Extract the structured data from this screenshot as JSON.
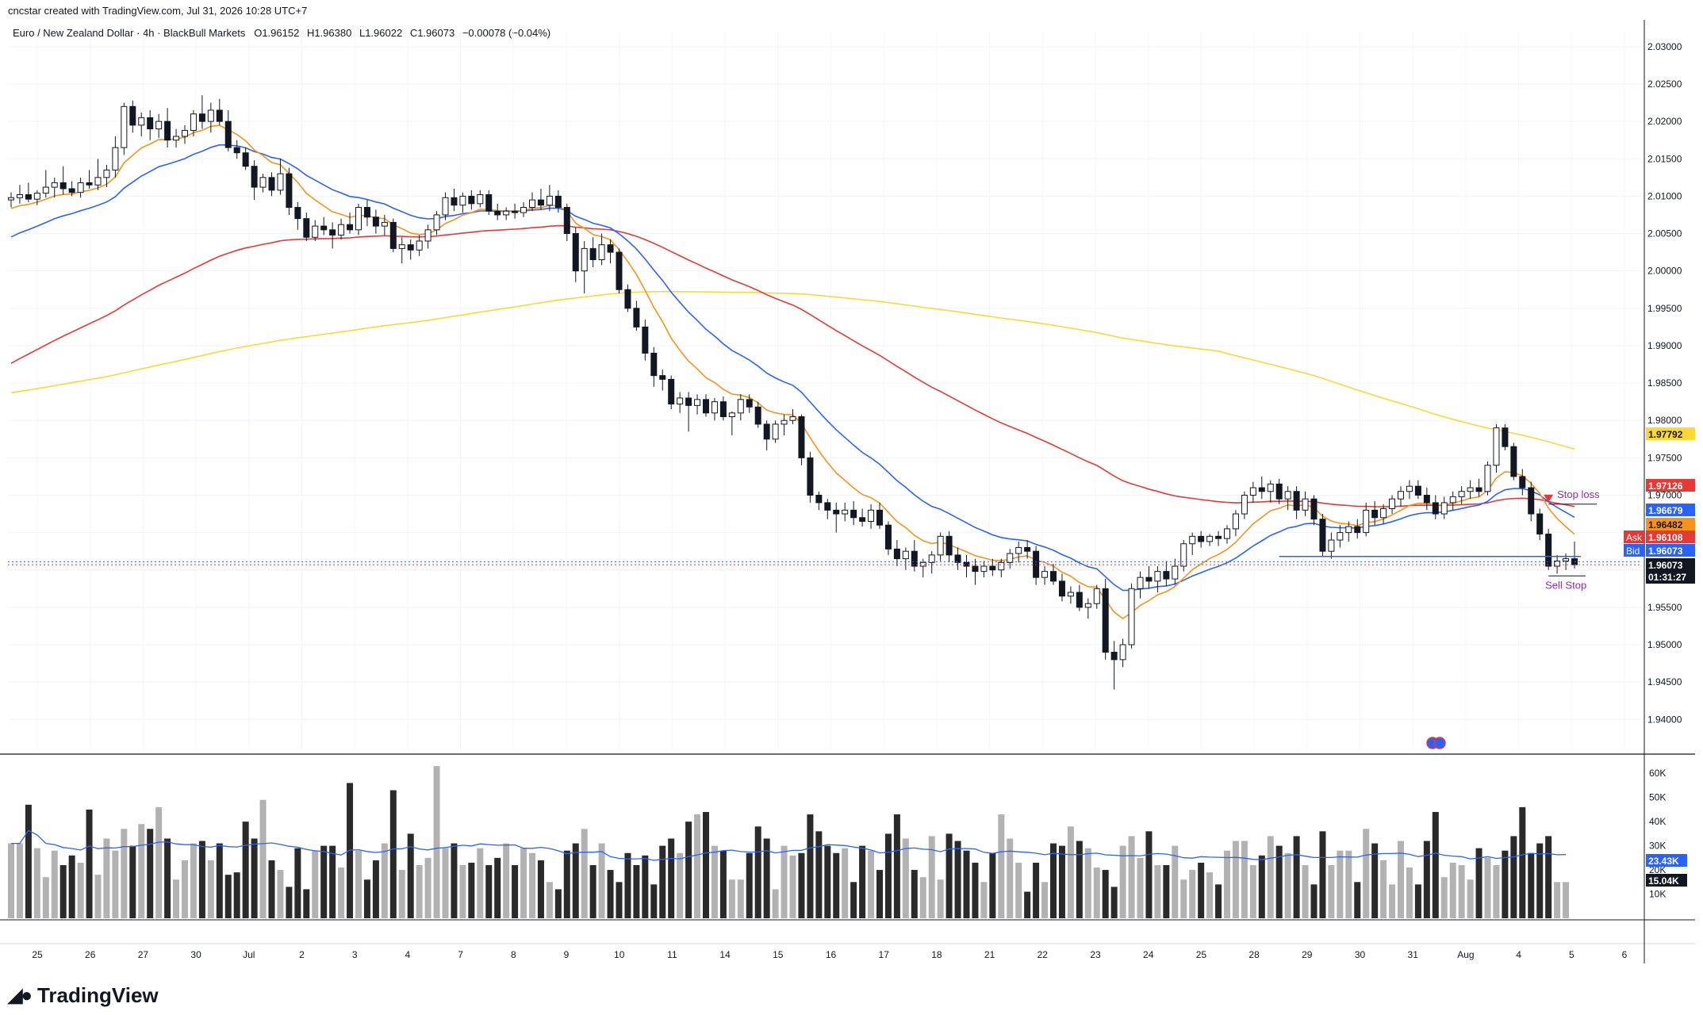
{
  "header": {
    "created_by": "cncstar created with TradingView.com, Jul 31, 2026 10:28 UTC+7"
  },
  "legend": {
    "symbol": "Euro / New Zealand Dollar · 4h · BlackBull Markets",
    "open_label": "O",
    "open": "1.96152",
    "high_label": "H",
    "high": "1.96380",
    "low_label": "L",
    "low": "1.96022",
    "close_label": "C",
    "close": "1.96073",
    "change": "−0.00078 (−0.04%)"
  },
  "brand": {
    "name": "TradingView",
    "logo_icon": "tradingview-logo-icon"
  },
  "colors": {
    "ema_fast": "#f7931a",
    "ema_mid": "#2962ff",
    "ema_slow": "#e53935",
    "sma_long": "#fdd835",
    "candle_up": "#ffffff",
    "candle_down": "#131722",
    "volume_up": "#b2b2b2",
    "volume_down": "#2a2a2a",
    "volume_ma": "#2962ff",
    "annotation": "#9c27b0",
    "stop_arrow": "#e53935"
  },
  "chart_data": {
    "type": "candlestick",
    "interval": "4h",
    "yaxis": {
      "ticks": [
        "2.03000",
        "2.02500",
        "2.02000",
        "2.01500",
        "2.01000",
        "2.00500",
        "2.00000",
        "1.99500",
        "1.99000",
        "1.98500",
        "1.98000",
        "1.97500",
        "1.97000",
        "1.96500",
        "1.96000",
        "1.95500",
        "1.95000",
        "1.94500",
        "1.94000"
      ],
      "ylim": [
        1.936,
        2.032
      ]
    },
    "xaxis": {
      "ticks": [
        "25",
        "26",
        "27",
        "30",
        "Jul",
        "2",
        "3",
        "4",
        "7",
        "8",
        "9",
        "10",
        "11",
        "14",
        "15",
        "16",
        "17",
        "18",
        "21",
        "22",
        "23",
        "24",
        "25",
        "28",
        "29",
        "30",
        "31",
        "Aug",
        "4",
        "5",
        "6"
      ]
    },
    "price_tags": [
      {
        "label": "",
        "value": "1.97792",
        "role": "sma_long"
      },
      {
        "label": "",
        "value": "1.97126",
        "role": "ema_slow"
      },
      {
        "label": "",
        "value": "1.96679",
        "role": "ema_mid"
      },
      {
        "label": "",
        "value": "1.96482",
        "role": "ema_fast"
      },
      {
        "label": "Ask",
        "value": "1.96108",
        "role": "ask"
      },
      {
        "label": "Bid",
        "value": "1.96073",
        "role": "bid"
      },
      {
        "label": "",
        "value": "1.96073",
        "role": "last",
        "countdown": "01:31:27"
      }
    ],
    "annotations": {
      "stop_loss": {
        "text": "Stop loss",
        "price": 1.9688
      },
      "sell_stop": {
        "text": "Sell Stop",
        "price": 1.9592
      },
      "support_line": 1.9618
    },
    "candles": [
      [
        2.0095,
        2.0105,
        2.0085,
        2.0098
      ],
      [
        2.0098,
        2.0115,
        2.009,
        2.0102
      ],
      [
        2.0102,
        2.0118,
        2.0092,
        2.0096
      ],
      [
        2.0096,
        2.0108,
        2.0088,
        2.0104
      ],
      [
        2.0104,
        2.0135,
        2.0098,
        2.0112
      ],
      [
        2.0112,
        2.0125,
        2.0098,
        2.0118
      ],
      [
        2.0118,
        2.014,
        2.0102,
        2.011
      ],
      [
        2.011,
        2.012,
        2.01,
        2.0105
      ],
      [
        2.0105,
        2.0125,
        2.0098,
        2.0118
      ],
      [
        2.0118,
        2.0135,
        2.011,
        2.0115
      ],
      [
        2.0115,
        2.015,
        2.0108,
        2.0125
      ],
      [
        2.0125,
        2.0142,
        2.0112,
        2.0135
      ],
      [
        2.0135,
        2.018,
        2.0125,
        2.0165
      ],
      [
        2.0165,
        2.0225,
        2.0155,
        2.022
      ],
      [
        2.022,
        2.0228,
        2.0185,
        2.0195
      ],
      [
        2.0195,
        2.0212,
        2.018,
        2.0205
      ],
      [
        2.0205,
        2.0215,
        2.0175,
        2.019
      ],
      [
        2.019,
        2.021,
        2.0178,
        2.02
      ],
      [
        2.02,
        2.0218,
        2.0165,
        2.0175
      ],
      [
        2.0175,
        2.019,
        2.0165,
        2.018
      ],
      [
        2.018,
        2.0195,
        2.017,
        2.0188
      ],
      [
        2.0188,
        2.0215,
        2.018,
        2.021
      ],
      [
        2.021,
        2.0235,
        2.019,
        2.02
      ],
      [
        2.02,
        2.0225,
        2.0185,
        2.0215
      ],
      [
        2.0215,
        2.023,
        2.0195,
        2.02
      ],
      [
        2.02,
        2.0215,
        2.016,
        2.0165
      ],
      [
        2.0165,
        2.0175,
        2.015,
        2.0158
      ],
      [
        2.0158,
        2.0165,
        2.0135,
        2.014
      ],
      [
        2.014,
        2.0148,
        2.0095,
        2.0112
      ],
      [
        2.0112,
        2.013,
        2.0105,
        2.0125
      ],
      [
        2.0125,
        2.0132,
        2.01,
        2.0108
      ],
      [
        2.0108,
        2.015,
        2.0102,
        2.013
      ],
      [
        2.013,
        2.0138,
        2.0075,
        2.0085
      ],
      [
        2.0085,
        2.0092,
        2.0055,
        2.007
      ],
      [
        2.007,
        2.0078,
        2.004,
        2.0045
      ],
      [
        2.0045,
        2.0068,
        2.004,
        2.006
      ],
      [
        2.006,
        2.0072,
        2.0048,
        2.0055
      ],
      [
        2.0055,
        2.0065,
        2.003,
        2.0048
      ],
      [
        2.0048,
        2.007,
        2.0042,
        2.0062
      ],
      [
        2.0062,
        2.0078,
        2.005,
        2.0055
      ],
      [
        2.0055,
        2.009,
        2.0048,
        2.0085
      ],
      [
        2.0085,
        2.0095,
        2.006,
        2.0072
      ],
      [
        2.0072,
        2.0082,
        2.005,
        2.006
      ],
      [
        2.006,
        2.0075,
        2.0048,
        2.0065
      ],
      [
        2.0065,
        2.007,
        2.0025,
        2.003
      ],
      [
        2.003,
        2.0045,
        2.001,
        2.0035
      ],
      [
        2.0035,
        2.0042,
        2.0015,
        2.0028
      ],
      [
        2.0028,
        2.0048,
        2.002,
        2.004
      ],
      [
        2.004,
        2.0062,
        2.003,
        2.0055
      ],
      [
        2.0055,
        2.008,
        2.0048,
        2.0075
      ],
      [
        2.0075,
        2.0105,
        2.0068,
        2.0098
      ],
      [
        2.0098,
        2.011,
        2.008,
        2.0088
      ],
      [
        2.0088,
        2.0105,
        2.0078,
        2.01
      ],
      [
        2.01,
        2.0108,
        2.0082,
        2.009
      ],
      [
        2.009,
        2.0108,
        2.0085,
        2.0102
      ],
      [
        2.0102,
        2.0108,
        2.0075,
        2.008
      ],
      [
        2.008,
        2.009,
        2.0068,
        2.0075
      ],
      [
        2.0075,
        2.0085,
        2.0068,
        2.008
      ],
      [
        2.008,
        2.009,
        2.007,
        2.0078
      ],
      [
        2.0078,
        2.0092,
        2.0072,
        2.0085
      ],
      [
        2.0085,
        2.0105,
        2.008,
        2.0095
      ],
      [
        2.0095,
        2.011,
        2.0082,
        2.0088
      ],
      [
        2.0088,
        2.0115,
        2.008,
        2.01
      ],
      [
        2.01,
        2.0108,
        2.0078,
        2.0085
      ],
      [
        2.0085,
        2.009,
        2.004,
        2.005
      ],
      [
        2.005,
        2.0058,
        1.9985,
        2.0
      ],
      [
        2.0,
        2.004,
        1.997,
        2.003
      ],
      [
        2.003,
        2.0045,
        2.0005,
        2.0015
      ],
      [
        2.0015,
        2.005,
        2.0008,
        2.0035
      ],
      [
        2.0035,
        2.0042,
        2.001,
        2.0025
      ],
      [
        2.0025,
        2.003,
        1.997,
        1.9975
      ],
      [
        1.9975,
        1.9982,
        1.9945,
        1.995
      ],
      [
        1.995,
        1.996,
        1.992,
        1.9925
      ],
      [
        1.9925,
        1.9935,
        1.988,
        1.989
      ],
      [
        1.989,
        1.9898,
        1.9845,
        1.986
      ],
      [
        1.986,
        1.9868,
        1.984,
        1.9855
      ],
      [
        1.9855,
        1.986,
        1.9815,
        1.9822
      ],
      [
        1.9822,
        1.9838,
        1.981,
        1.983
      ],
      [
        1.983,
        1.9838,
        1.9785,
        1.982
      ],
      [
        1.982,
        1.9835,
        1.9808,
        1.9828
      ],
      [
        1.9828,
        1.9835,
        1.9805,
        1.981
      ],
      [
        1.981,
        1.983,
        1.98,
        1.9825
      ],
      [
        1.9825,
        1.9832,
        1.98,
        1.9805
      ],
      [
        1.9805,
        1.9812,
        1.978,
        1.981
      ],
      [
        1.981,
        1.9835,
        1.98,
        1.9828
      ],
      [
        1.9828,
        1.9835,
        1.981,
        1.9818
      ],
      [
        1.9818,
        1.9825,
        1.979,
        1.9795
      ],
      [
        1.9795,
        1.98,
        1.976,
        1.9775
      ],
      [
        1.9775,
        1.98,
        1.977,
        1.9795
      ],
      [
        1.9795,
        1.9808,
        1.978,
        1.98
      ],
      [
        1.98,
        1.9815,
        1.9795,
        1.9805
      ],
      [
        1.9805,
        1.9808,
        1.974,
        1.975
      ],
      [
        1.975,
        1.9758,
        1.969,
        1.97
      ],
      [
        1.97,
        1.9705,
        1.968,
        1.969
      ],
      [
        1.969,
        1.9695,
        1.9668,
        1.968
      ],
      [
        1.968,
        1.969,
        1.965,
        1.9675
      ],
      [
        1.9675,
        1.969,
        1.9665,
        1.968
      ],
      [
        1.968,
        1.9692,
        1.966,
        1.967
      ],
      [
        1.967,
        1.9682,
        1.9658,
        1.9665
      ],
      [
        1.9665,
        1.9688,
        1.9655,
        1.968
      ],
      [
        1.968,
        1.969,
        1.9655,
        1.966
      ],
      [
        1.966,
        1.9665,
        1.962,
        1.9628
      ],
      [
        1.9628,
        1.964,
        1.9605,
        1.9615
      ],
      [
        1.9615,
        1.963,
        1.96,
        1.9625
      ],
      [
        1.9625,
        1.964,
        1.9598,
        1.9605
      ],
      [
        1.9605,
        1.9615,
        1.959,
        1.961
      ],
      [
        1.961,
        1.9625,
        1.9595,
        1.962
      ],
      [
        1.962,
        1.965,
        1.9612,
        1.9645
      ],
      [
        1.9645,
        1.9652,
        1.961,
        1.962
      ],
      [
        1.962,
        1.963,
        1.96,
        1.961
      ],
      [
        1.961,
        1.962,
        1.959,
        1.9605
      ],
      [
        1.9605,
        1.9615,
        1.958,
        1.9598
      ],
      [
        1.9598,
        1.9612,
        1.959,
        1.9605
      ],
      [
        1.9605,
        1.9615,
        1.9592,
        1.96
      ],
      [
        1.96,
        1.9615,
        1.959,
        1.961
      ],
      [
        1.961,
        1.9628,
        1.9602,
        1.9622
      ],
      [
        1.9622,
        1.9638,
        1.961,
        1.963
      ],
      [
        1.963,
        1.964,
        1.9615,
        1.9625
      ],
      [
        1.9625,
        1.9632,
        1.958,
        1.959
      ],
      [
        1.959,
        1.9605,
        1.958,
        1.9598
      ],
      [
        1.9598,
        1.9608,
        1.958,
        1.9585
      ],
      [
        1.9585,
        1.9595,
        1.9558,
        1.9565
      ],
      [
        1.9565,
        1.9578,
        1.9555,
        1.957
      ],
      [
        1.957,
        1.958,
        1.9545,
        1.955
      ],
      [
        1.955,
        1.9562,
        1.9535,
        1.9555
      ],
      [
        1.9555,
        1.958,
        1.9548,
        1.9575
      ],
      [
        1.9575,
        1.9588,
        1.948,
        1.949
      ],
      [
        1.949,
        1.9505,
        1.944,
        1.948
      ],
      [
        1.948,
        1.9508,
        1.947,
        1.95
      ],
      [
        1.95,
        1.9582,
        1.9495,
        1.9575
      ],
      [
        1.9575,
        1.9598,
        1.9562,
        1.959
      ],
      [
        1.959,
        1.9605,
        1.9575,
        1.9585
      ],
      [
        1.9585,
        1.9605,
        1.957,
        1.9598
      ],
      [
        1.9598,
        1.9612,
        1.9578,
        1.9588
      ],
      [
        1.9588,
        1.9615,
        1.958,
        1.9605
      ],
      [
        1.9605,
        1.964,
        1.9598,
        1.9635
      ],
      [
        1.9635,
        1.965,
        1.962,
        1.9645
      ],
      [
        1.9645,
        1.9652,
        1.963,
        1.9638
      ],
      [
        1.9638,
        1.9648,
        1.9632,
        1.9645
      ],
      [
        1.9645,
        1.9652,
        1.9632,
        1.9642
      ],
      [
        1.9642,
        1.966,
        1.9635,
        1.9655
      ],
      [
        1.9655,
        1.968,
        1.9645,
        1.9675
      ],
      [
        1.9675,
        1.9705,
        1.9668,
        1.97
      ],
      [
        1.97,
        1.9718,
        1.969,
        1.971
      ],
      [
        1.971,
        1.9725,
        1.9695,
        1.9705
      ],
      [
        1.9705,
        1.972,
        1.969,
        1.9715
      ],
      [
        1.9715,
        1.9722,
        1.9688,
        1.9695
      ],
      [
        1.9695,
        1.9712,
        1.968,
        1.9705
      ],
      [
        1.9705,
        1.9712,
        1.9668,
        1.968
      ],
      [
        1.968,
        1.9705,
        1.9672,
        1.9695
      ],
      [
        1.9695,
        1.97,
        1.966,
        1.9668
      ],
      [
        1.9668,
        1.9675,
        1.9618,
        1.9625
      ],
      [
        1.9625,
        1.965,
        1.9615,
        1.964
      ],
      [
        1.964,
        1.966,
        1.963,
        1.965
      ],
      [
        1.965,
        1.9665,
        1.9638,
        1.9658
      ],
      [
        1.9658,
        1.9668,
        1.9642,
        1.965
      ],
      [
        1.965,
        1.969,
        1.9645,
        1.968
      ],
      [
        1.968,
        1.9692,
        1.966,
        1.967
      ],
      [
        1.967,
        1.9688,
        1.9662,
        1.9682
      ],
      [
        1.9682,
        1.97,
        1.9675,
        1.9695
      ],
      [
        1.9695,
        1.9712,
        1.9685,
        1.9705
      ],
      [
        1.9705,
        1.972,
        1.9695,
        1.9712
      ],
      [
        1.9712,
        1.972,
        1.9695,
        1.97
      ],
      [
        1.97,
        1.971,
        1.968,
        1.969
      ],
      [
        1.969,
        1.97,
        1.9668,
        1.9675
      ],
      [
        1.9675,
        1.9698,
        1.9668,
        1.969
      ],
      [
        1.969,
        1.9705,
        1.968,
        1.9698
      ],
      [
        1.9698,
        1.9712,
        1.9688,
        1.9705
      ],
      [
        1.9705,
        1.972,
        1.9695,
        1.971
      ],
      [
        1.971,
        1.9722,
        1.9698,
        1.9705
      ],
      [
        1.9705,
        1.9745,
        1.97,
        1.974
      ],
      [
        1.974,
        1.9795,
        1.973,
        1.979
      ],
      [
        1.979,
        1.9795,
        1.976,
        1.9765
      ],
      [
        1.9765,
        1.977,
        1.972,
        1.9725
      ],
      [
        1.9725,
        1.9735,
        1.97,
        1.971
      ],
      [
        1.971,
        1.9718,
        1.9665,
        1.9675
      ],
      [
        1.9675,
        1.9682,
        1.964,
        1.9648
      ],
      [
        1.9648,
        1.9655,
        1.96,
        1.9605
      ],
      [
        1.9605,
        1.962,
        1.9595,
        1.9612
      ],
      [
        1.9612,
        1.9622,
        1.96,
        1.9615
      ],
      [
        1.9615,
        1.9638,
        1.9602,
        1.9607
      ]
    ],
    "volumes": [
      31,
      31,
      47,
      29,
      17,
      28,
      22,
      26,
      23,
      45,
      18,
      33,
      28,
      37,
      30,
      39,
      37,
      46,
      33,
      16,
      24,
      31,
      32,
      24,
      31,
      18,
      19,
      40,
      33,
      49,
      24,
      20,
      13,
      29,
      12,
      28,
      30,
      30,
      21,
      56,
      28,
      16,
      24,
      31,
      53,
      20,
      35,
      22,
      25,
      63,
      29,
      31,
      22,
      23,
      29,
      22,
      25,
      31,
      22,
      29,
      27,
      24,
      15,
      12,
      28,
      31,
      37,
      22,
      31,
      20,
      15,
      27,
      22,
      26,
      14,
      30,
      33,
      27,
      40,
      43,
      44,
      30,
      28,
      16,
      16,
      27,
      38,
      33,
      12,
      30,
      26,
      27,
      43,
      36,
      30,
      27,
      29,
      15,
      30,
      28,
      20,
      35,
      43,
      33,
      20,
      17,
      34,
      16,
      35,
      32,
      28,
      23,
      15,
      27,
      43,
      33,
      23,
      11,
      23,
      15,
      31,
      30,
      38,
      32,
      29,
      21,
      20,
      13,
      30,
      34,
      25,
      36,
      22,
      22,
      30,
      16,
      20,
      23,
      19,
      14,
      28,
      32,
      32,
      22,
      26,
      34,
      30,
      27,
      34,
      22,
      14,
      36,
      22,
      28,
      28,
      15,
      37,
      31,
      24,
      14,
      32,
      21,
      14,
      32,
      44,
      17,
      23,
      22,
      16,
      29,
      25,
      22,
      28,
      34,
      46,
      27,
      31,
      34,
      15,
      15
    ],
    "volume_axis": {
      "ticks": [
        "60K",
        "50K",
        "40K",
        "30K",
        "20K",
        "10K"
      ],
      "ylim": [
        0,
        65
      ]
    },
    "volume_tags": [
      {
        "value": "23.43K",
        "role": "volume_ma"
      },
      {
        "value": "15.04K",
        "role": "volume"
      }
    ]
  }
}
